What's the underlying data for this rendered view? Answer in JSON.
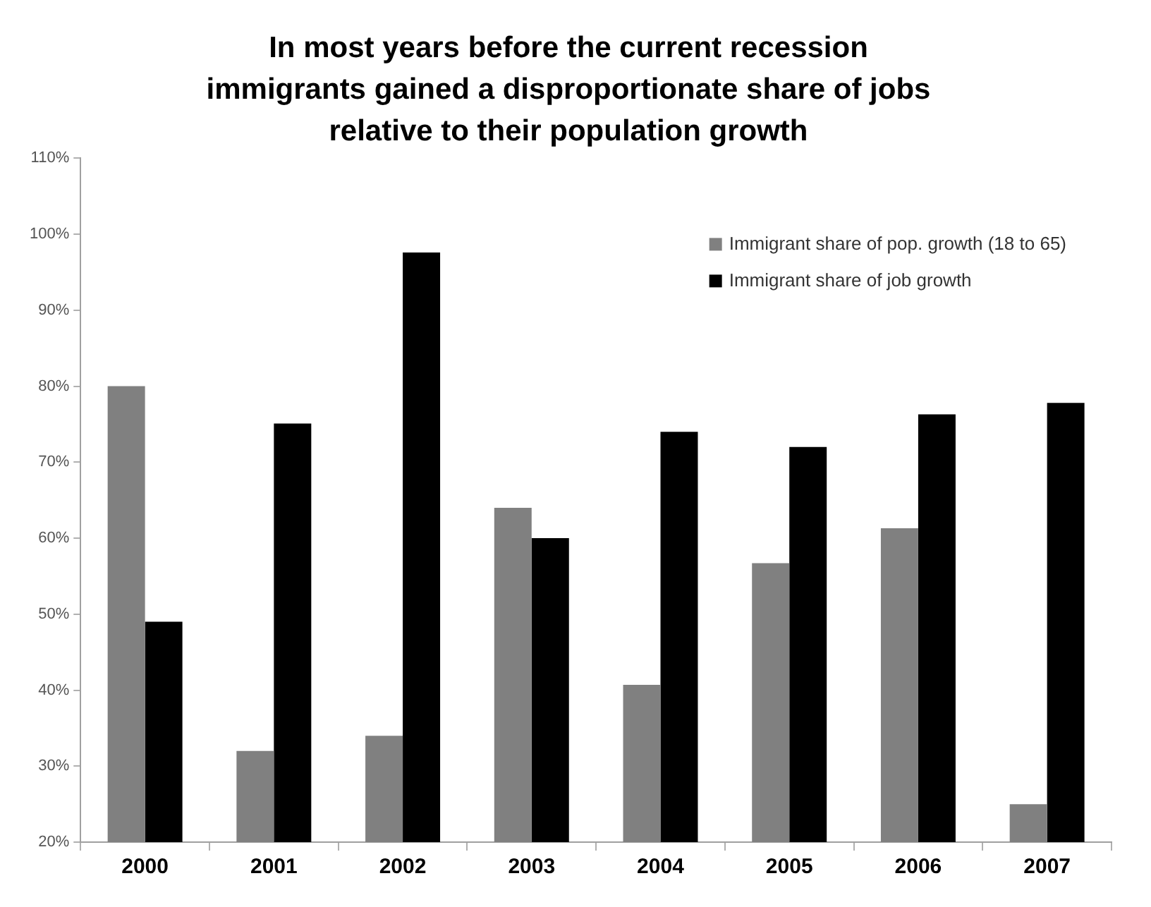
{
  "chart_data": {
    "type": "bar",
    "title": "In most years before the current recession\nimmigrants gained a disproportionate share of jobs\nrelative to their population growth",
    "categories": [
      "2000",
      "2001",
      "2002",
      "2003",
      "2004",
      "2005",
      "2006",
      "2007"
    ],
    "series": [
      {
        "name": "Immigrant share of pop. growth (18 to 65)",
        "color": "#808080",
        "values": [
          80,
          32,
          34,
          64,
          40.7,
          56.7,
          61.3,
          25
        ]
      },
      {
        "name": "Immigrant share of job growth",
        "color": "#000000",
        "values": [
          49,
          75.1,
          97.6,
          60,
          74,
          72,
          76.3,
          77.8
        ]
      }
    ],
    "ylim": [
      20,
      110
    ],
    "yticks": [
      {
        "value": 20,
        "label": "20%"
      },
      {
        "value": 30,
        "label": "30%"
      },
      {
        "value": 40,
        "label": "40%"
      },
      {
        "value": 50,
        "label": "50%"
      },
      {
        "value": 60,
        "label": "60%"
      },
      {
        "value": 70,
        "label": "70%"
      },
      {
        "value": 80,
        "label": "80%"
      },
      {
        "value": 90,
        "label": "90%"
      },
      {
        "value": 100,
        "label": "100%"
      },
      {
        "value": 110,
        "label": "110%"
      }
    ],
    "grid": false,
    "legend": "top right"
  }
}
